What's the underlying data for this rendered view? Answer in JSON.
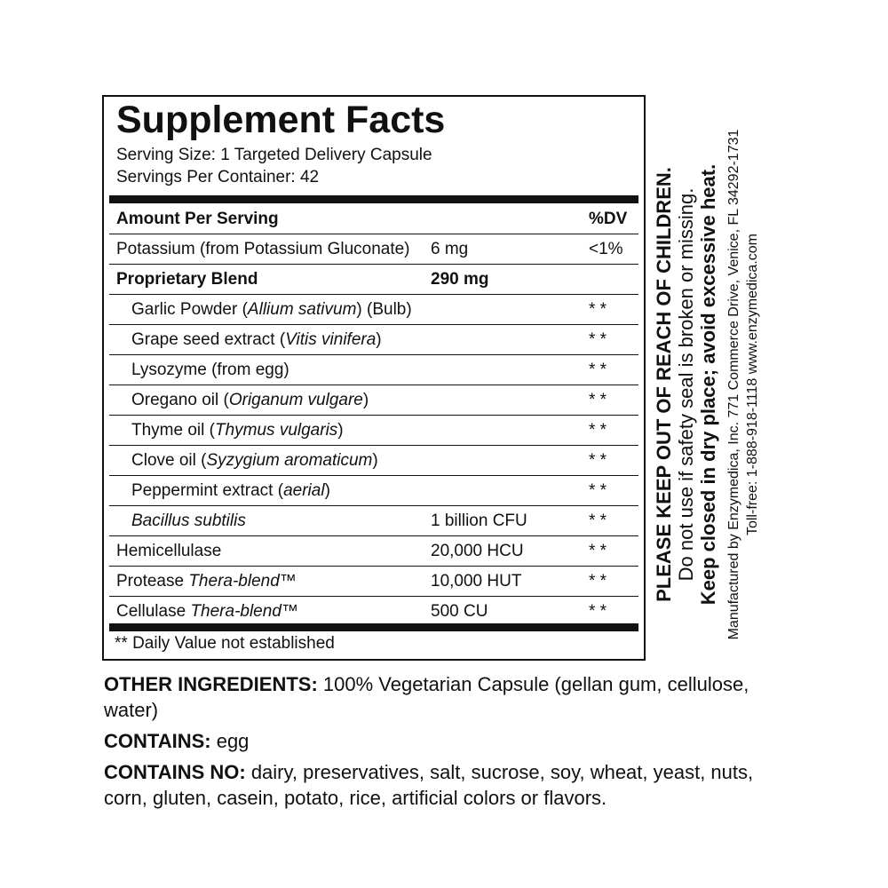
{
  "facts": {
    "title": "Supplement Facts",
    "serving_size": "Serving Size: 1 Targeted Delivery Capsule",
    "servings_per_container": "Servings Per Container: 42",
    "header": {
      "name": "Amount Per Serving",
      "dv": "%DV"
    },
    "rows": [
      {
        "name": "Potassium (from Potassium Gluconate)",
        "name_italic": "",
        "name_after": "",
        "amount": "6 mg",
        "dv": "<1%"
      },
      {
        "name": "Proprietary Blend",
        "name_italic": "",
        "name_after": "",
        "amount": "290 mg",
        "dv": ""
      },
      {
        "name": "Garlic Powder (",
        "name_italic": "Allium sativum",
        "name_after": ") (Bulb)",
        "amount": "",
        "dv": "* *"
      },
      {
        "name": "Grape seed extract (",
        "name_italic": "Vitis vinifera",
        "name_after": ")",
        "amount": "",
        "dv": "* *"
      },
      {
        "name": "Lysozyme (from egg)",
        "name_italic": "",
        "name_after": "",
        "amount": "",
        "dv": "* *"
      },
      {
        "name": "Oregano oil (",
        "name_italic": "Origanum vulgare",
        "name_after": ")",
        "amount": "",
        "dv": "* *"
      },
      {
        "name": "Thyme oil (",
        "name_italic": "Thymus vulgaris",
        "name_after": ")",
        "amount": "",
        "dv": "* *"
      },
      {
        "name": "Clove oil (",
        "name_italic": "Syzygium aromaticum",
        "name_after": ")",
        "amount": "",
        "dv": "* *"
      },
      {
        "name": "Peppermint extract (",
        "name_italic": "aerial",
        "name_after": ")",
        "amount": "",
        "dv": "* *"
      },
      {
        "name": "",
        "name_italic": "Bacillus subtilis",
        "name_after": "",
        "amount": "1 billion CFU",
        "dv": "* *"
      },
      {
        "name": "Hemicellulase",
        "name_italic": "",
        "name_after": "",
        "amount": "20,000 HCU",
        "dv": "* *"
      },
      {
        "name": "Protease ",
        "name_italic": "Thera-blend™",
        "name_after": "",
        "amount": "10,000 HUT",
        "dv": "* *"
      },
      {
        "name": "Cellulase ",
        "name_italic": "Thera-blend™",
        "name_after": "",
        "amount": "500 CU",
        "dv": "* *"
      }
    ],
    "footnote": "** Daily Value not established"
  },
  "side": {
    "line1": "PLEASE KEEP OUT OF REACH OF CHILDREN.",
    "line2": "Do not use if safety seal is broken or missing.",
    "line3": "Keep closed in dry place; avoid excessive heat.",
    "line4": "Manufactured by Enzymedica, Inc. 771 Commerce Drive, Venice, FL 34292-1731",
    "line5": "Toll-free: 1-888-918-1118 www.enzymedica.com"
  },
  "bottom": {
    "other_label": "OTHER INGREDIENTS:",
    "other_text": " 100% Vegetarian Capsule (gellan gum, cellulose, water)",
    "contains_label": "CONTAINS:",
    "contains_text": " egg",
    "contains_no_label": "CONTAINS NO:",
    "contains_no_text": " dairy, preservatives, salt, sucrose, soy, wheat, yeast, nuts, corn, gluten, casein, potato, rice, artificial colors or flavors."
  }
}
